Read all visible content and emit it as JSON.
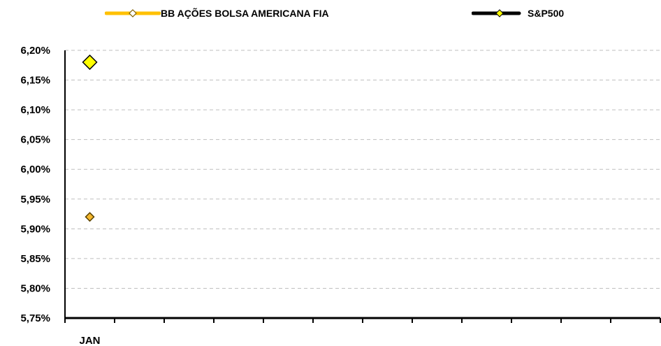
{
  "chart_data": {
    "type": "scatter",
    "title": "",
    "xlabel": "",
    "ylabel": "",
    "categories": [
      "JAN",
      "",
      "",
      "",
      "",
      "",
      "",
      "",
      "",
      "",
      "",
      ""
    ],
    "y_ticks": [
      "5,75%",
      "5,80%",
      "5,85%",
      "5,90%",
      "5,95%",
      "6,00%",
      "6,05%",
      "6,10%",
      "6,15%",
      "6,20%"
    ],
    "ylim": [
      5.75,
      6.2
    ],
    "grid": true,
    "legend_position": "top",
    "series": [
      {
        "name": "BB AÇÕES BOLSA AMERICANA FIA",
        "line_color": "#FFC000",
        "marker_color": "#F5B82E",
        "values": [
          5.92
        ]
      },
      {
        "name": "S&P500",
        "line_color": "#000000",
        "marker_color": "#FFFF00",
        "values": [
          6.18
        ]
      }
    ]
  }
}
